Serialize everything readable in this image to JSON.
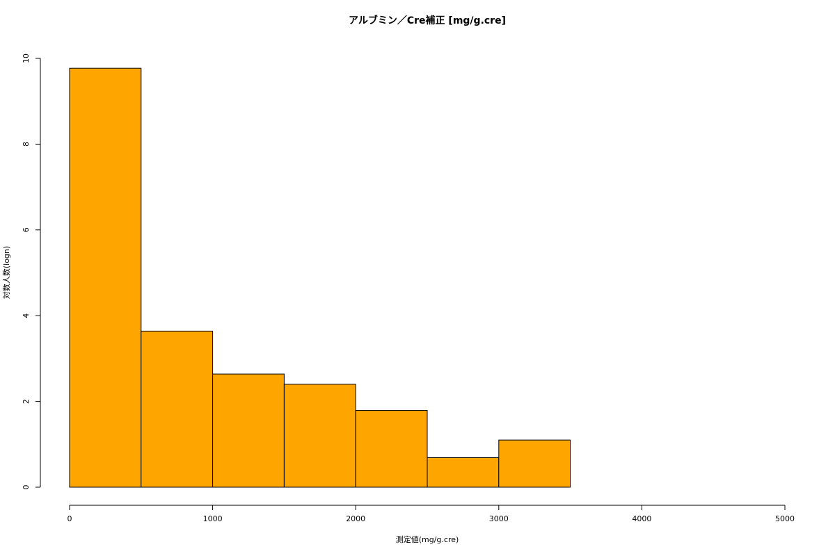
{
  "chart_data": {
    "type": "histogram",
    "title": "アルブミン／Cre補正 [mg/g.cre]",
    "x_label": "測定値(mg/g.cre)",
    "y_label": "対数人数(logn)",
    "bins": [
      0,
      500,
      1000,
      1500,
      2000,
      2500,
      3000,
      3500,
      4000
    ],
    "values": [
      9.77,
      3.64,
      2.64,
      2.4,
      1.79,
      0.69,
      1.1,
      0
    ],
    "color": "#ffa500",
    "xlim": [
      0,
      5000
    ],
    "xticks": [
      0,
      1000,
      2000,
      3000,
      4000,
      5000
    ],
    "ylim": [
      0,
      10
    ],
    "yticks": [
      0,
      2,
      4,
      6,
      8,
      10
    ]
  }
}
